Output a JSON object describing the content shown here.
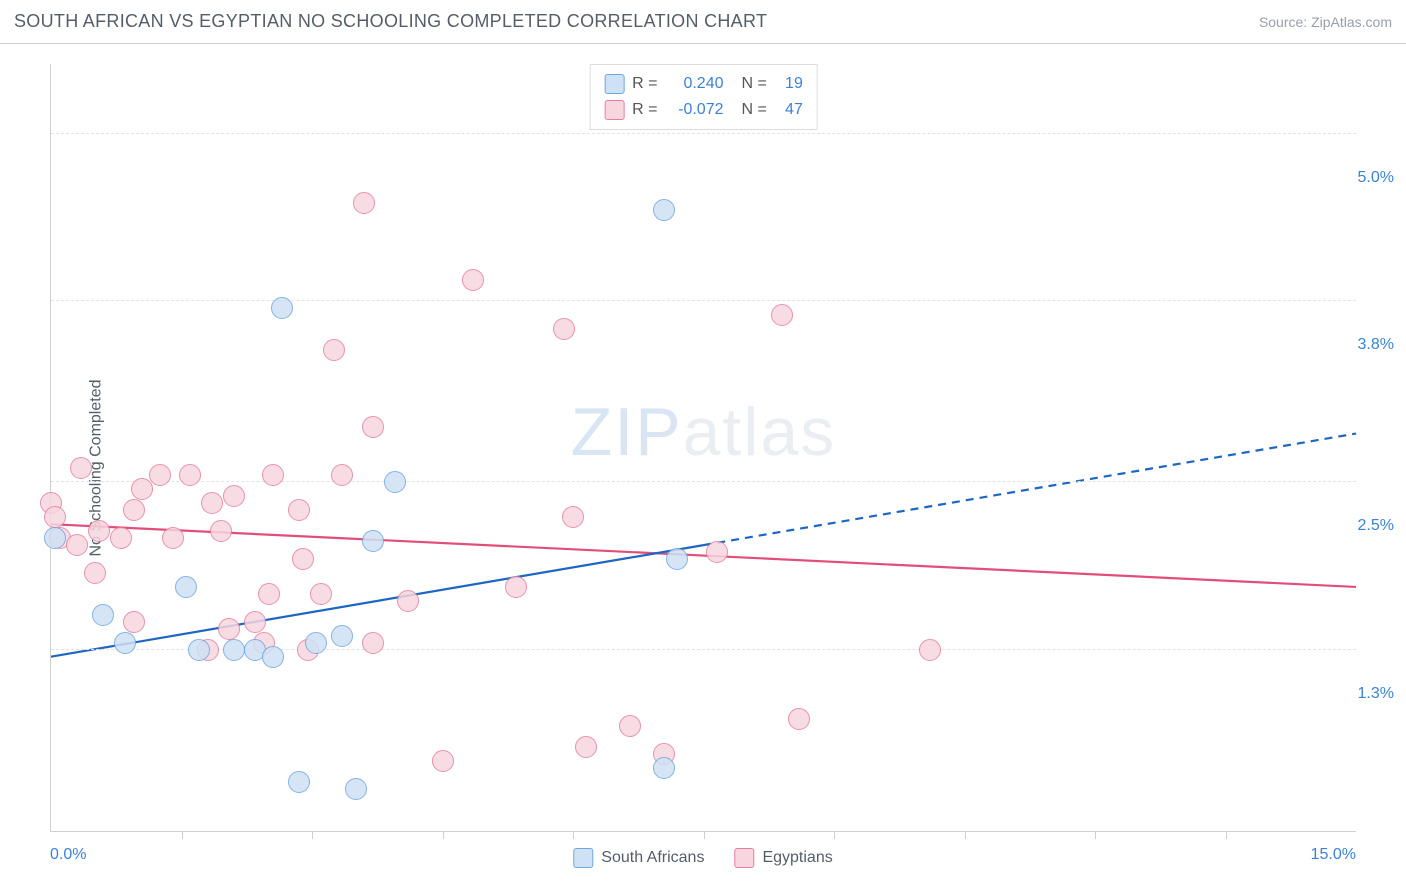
{
  "header": {
    "title": "SOUTH AFRICAN VS EGYPTIAN NO SCHOOLING COMPLETED CORRELATION CHART",
    "source": "Source: ZipAtlas.com"
  },
  "watermark": {
    "part1": "ZIP",
    "part2": "atlas"
  },
  "chart": {
    "type": "scatter",
    "ylabel": "No Schooling Completed",
    "xlim": [
      0,
      15
    ],
    "ylim": [
      0,
      5.5
    ],
    "x_tick_step": 1.5,
    "y_gridlines": [
      1.3,
      2.5,
      3.8,
      5.0
    ],
    "y_tick_labels": [
      "1.3%",
      "2.5%",
      "3.8%",
      "5.0%"
    ],
    "x_min_label": "0.0%",
    "x_max_label": "15.0%",
    "background_color": "#ffffff",
    "grid_color": "#e3e3e3",
    "axis_color": "#cfcfcf",
    "axis_label_color": "#3b82d6",
    "text_color": "#555e68",
    "marker_radius": 11,
    "marker_border_width": 1.2,
    "line_width": 2.2,
    "series": [
      {
        "name": "South Africans",
        "fill": "#cfe1f5",
        "stroke": "#6ea6dd",
        "line_color": "#1e66c4",
        "R": "0.240",
        "N": "19",
        "trend": {
          "x1": 0,
          "y1": 1.25,
          "x2": 15,
          "y2": 2.85,
          "solid_until_x": 7.5
        },
        "points": [
          [
            0.05,
            2.1
          ],
          [
            0.6,
            1.55
          ],
          [
            0.85,
            1.35
          ],
          [
            1.55,
            1.75
          ],
          [
            1.7,
            1.3
          ],
          [
            2.1,
            1.3
          ],
          [
            2.35,
            1.3
          ],
          [
            2.55,
            1.25
          ],
          [
            2.65,
            3.75
          ],
          [
            3.05,
            1.35
          ],
          [
            3.35,
            1.4
          ],
          [
            3.7,
            2.08
          ],
          [
            3.95,
            2.5
          ],
          [
            2.85,
            0.35
          ],
          [
            3.5,
            0.3
          ],
          [
            7.05,
            4.45
          ],
          [
            7.05,
            0.45
          ],
          [
            7.2,
            1.95
          ]
        ]
      },
      {
        "name": "Egyptians",
        "fill": "#f7d6df",
        "stroke": "#e57f9d",
        "line_color": "#e24e7a",
        "R": "-0.072",
        "N": "47",
        "trend": {
          "x1": 0,
          "y1": 2.2,
          "x2": 15,
          "y2": 1.75,
          "solid_until_x": 15
        },
        "points": [
          [
            0.0,
            2.35
          ],
          [
            0.05,
            2.25
          ],
          [
            0.1,
            2.1
          ],
          [
            0.35,
            2.6
          ],
          [
            0.3,
            2.05
          ],
          [
            0.55,
            2.15
          ],
          [
            0.5,
            1.85
          ],
          [
            0.8,
            2.1
          ],
          [
            0.95,
            2.3
          ],
          [
            0.95,
            1.5
          ],
          [
            1.05,
            2.45
          ],
          [
            1.25,
            2.55
          ],
          [
            1.4,
            2.1
          ],
          [
            1.6,
            2.55
          ],
          [
            1.85,
            2.35
          ],
          [
            1.95,
            2.15
          ],
          [
            1.8,
            1.3
          ],
          [
            2.05,
            1.45
          ],
          [
            2.1,
            2.4
          ],
          [
            2.35,
            1.5
          ],
          [
            2.45,
            1.35
          ],
          [
            2.5,
            1.7
          ],
          [
            2.55,
            2.55
          ],
          [
            2.85,
            2.3
          ],
          [
            2.9,
            1.95
          ],
          [
            2.95,
            1.3
          ],
          [
            3.1,
            1.7
          ],
          [
            3.25,
            3.45
          ],
          [
            3.35,
            2.55
          ],
          [
            3.6,
            4.5
          ],
          [
            3.7,
            2.9
          ],
          [
            3.7,
            1.35
          ],
          [
            4.1,
            1.65
          ],
          [
            4.5,
            0.5
          ],
          [
            4.85,
            3.95
          ],
          [
            5.35,
            1.75
          ],
          [
            5.9,
            3.6
          ],
          [
            6.0,
            2.25
          ],
          [
            6.15,
            0.6
          ],
          [
            6.65,
            0.75
          ],
          [
            7.05,
            0.55
          ],
          [
            7.65,
            2.0
          ],
          [
            8.4,
            3.7
          ],
          [
            8.6,
            0.8
          ],
          [
            10.1,
            1.3
          ]
        ]
      }
    ]
  },
  "legend": {
    "series1_label": "South Africans",
    "series2_label": "Egyptians"
  },
  "stats_labels": {
    "R": "R =",
    "N": "N ="
  }
}
